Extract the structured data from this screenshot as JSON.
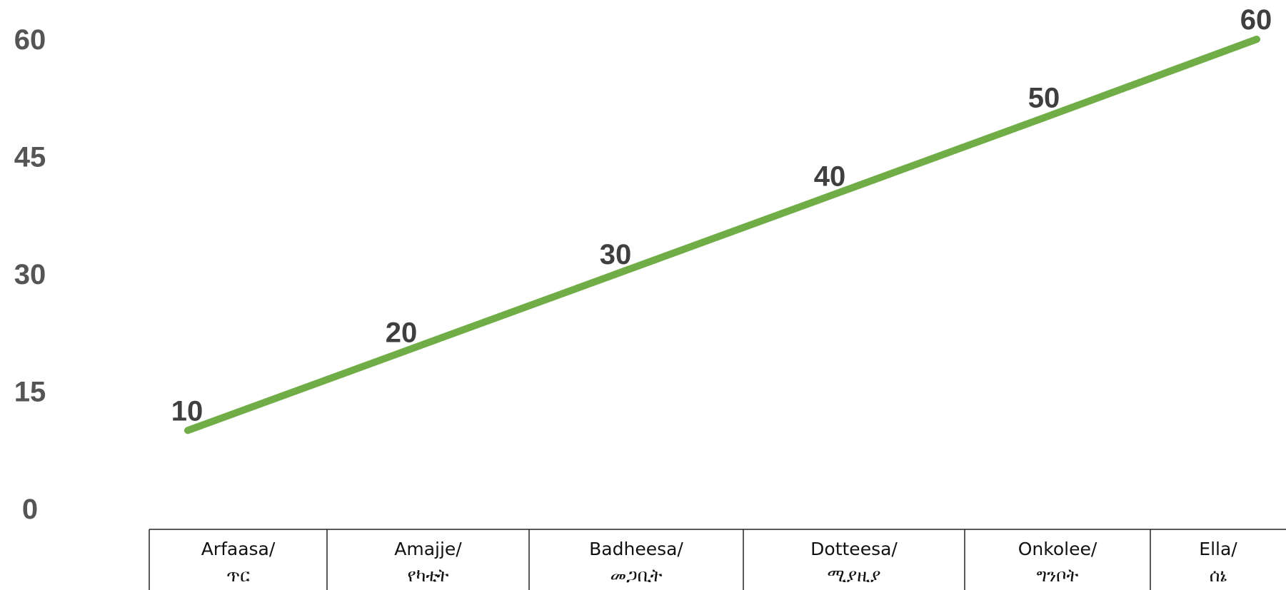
{
  "chart_data": {
    "type": "line",
    "categories": [
      [
        "Arfaasa/",
        "ጥር"
      ],
      [
        "Amajje/",
        "የካቲት"
      ],
      [
        "Badheesa/",
        "መጋቢት"
      ],
      [
        "Dotteesa/",
        "ሚያዚያ"
      ],
      [
        "Onkolee/",
        "ግንቦት"
      ],
      [
        "Ella/",
        "ሰኔ"
      ]
    ],
    "values": [
      10,
      20,
      30,
      40,
      50,
      60
    ],
    "data_labels": [
      "10",
      "20",
      "30",
      "40",
      "50",
      "60"
    ],
    "y_ticks": [
      "0",
      "15",
      "30",
      "45",
      "60"
    ],
    "ylim": [
      0,
      60
    ],
    "line_color": "#70ad47",
    "label_color": "#3f3f3f",
    "tick_color": "#555555",
    "grid": false,
    "legend": "none"
  }
}
